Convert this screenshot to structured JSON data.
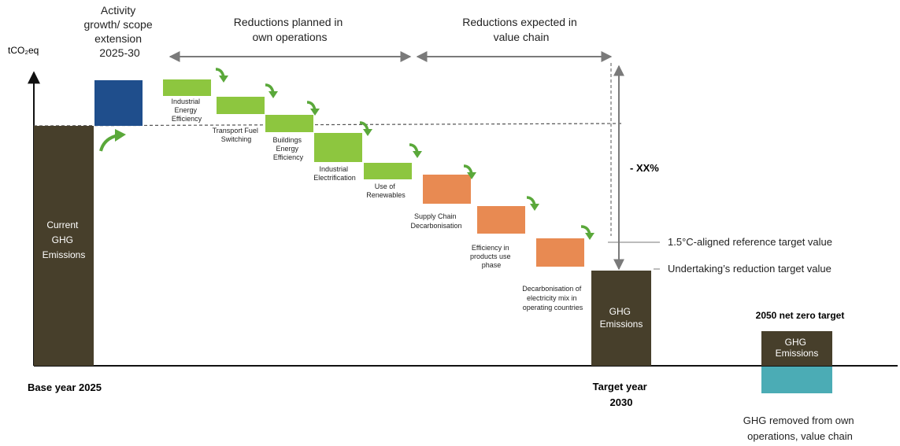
{
  "chart_data": {
    "type": "waterfall",
    "y_unit_label": "tCO₂eq",
    "colors": {
      "emissions": "#473f2b",
      "growth": "#1f4e8c",
      "own_operations": "#8dc63f",
      "value_chain": "#e88a52",
      "removals": "#4bacb5",
      "arrow": "#5aa83a",
      "guide": "#7a7a7a"
    },
    "base": {
      "label": "Current GHG Emissions",
      "x_label": "Base year 2025"
    },
    "growth": {
      "label": "Activity growth/ scope extension 2025-30"
    },
    "reductions": [
      {
        "label": "Industrial Energy Efficiency",
        "group": "own_operations"
      },
      {
        "label": "Transport Fuel Switching",
        "group": "own_operations"
      },
      {
        "label": "Buildings Energy Efficiency",
        "group": "own_operations"
      },
      {
        "label": "Industrial Electrification",
        "group": "own_operations"
      },
      {
        "label": "Use of Renewables",
        "group": "own_operations"
      },
      {
        "label": "Supply Chain Decarbonisation",
        "group": "value_chain"
      },
      {
        "label": "Efficiency in products use phase",
        "group": "value_chain"
      },
      {
        "label": "Decarbonisation of electricity mix in operating countries",
        "group": "value_chain"
      }
    ],
    "target": {
      "label": "GHG Emissions",
      "x_label": "Target year 2030"
    },
    "net_zero": {
      "title": "2050 net zero target",
      "emissions_label": "GHG Emissions",
      "removals_label": "GHG removed from own operations, value chain"
    },
    "spans": {
      "own_operations": "Reductions planned in own operations",
      "value_chain": "Reductions expected in value chain"
    },
    "reduction_percent_label": "- XX%",
    "reference_lines": {
      "aligned": "1.5°C-aligned reference target value",
      "undertaking": "Undertaking’s reduction target value"
    }
  }
}
